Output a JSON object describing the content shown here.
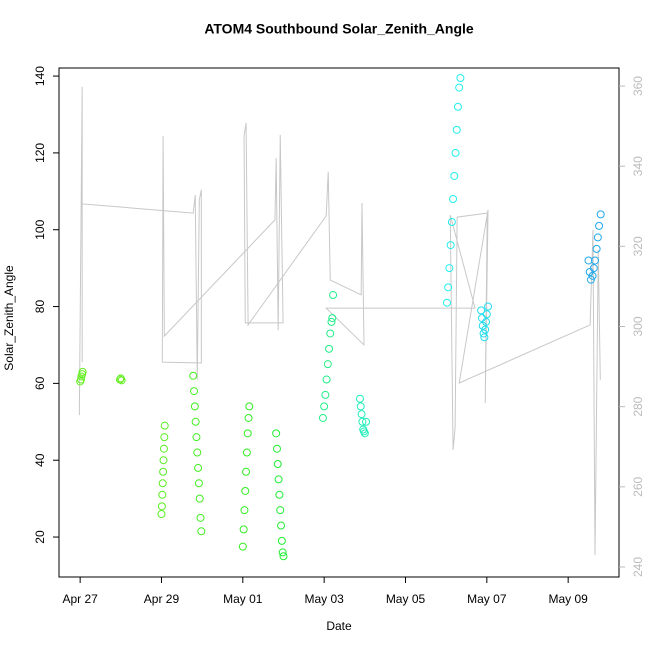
{
  "chart_data": {
    "type": "scatter",
    "title": "ATOM4 Southbound Solar_Zenith_Angle",
    "x_label": "Date",
    "y_label": "Solar_Zenith_Angle",
    "xlim": [
      -0.52,
      13.25
    ],
    "xticks": [
      {
        "value": 0,
        "label": "Apr 27"
      },
      {
        "value": 2,
        "label": "Apr 29"
      },
      {
        "value": 4,
        "label": "May 01"
      },
      {
        "value": 6,
        "label": "May 03"
      },
      {
        "value": 8,
        "label": "May 05"
      },
      {
        "value": 10,
        "label": "May 07"
      },
      {
        "value": 12,
        "label": "May 09"
      }
    ],
    "ylim": [
      9.6,
      142.1
    ],
    "yticks": [
      20,
      40,
      60,
      80,
      100,
      120,
      140
    ],
    "y2lim": [
      237.5,
      364.5
    ],
    "y2ticks": [
      240,
      260,
      280,
      300,
      320,
      340,
      360
    ],
    "y2_color": "#bbbbbb",
    "series": [
      {
        "type": "line",
        "axis": "y2",
        "color": "#c8c8c8",
        "x": [
          -0.02,
          0.05,
          0.05,
          0.05,
          2.78,
          2.83,
          2.88,
          2.93,
          2.98,
          2.98,
          2.02,
          2.04,
          2.07,
          4.79,
          4.82,
          4.87,
          4.92,
          4.99,
          4.06,
          4.03,
          4.08,
          4.13,
          6.05,
          6.1,
          6.15,
          6.91,
          6.93,
          6.98,
          6.05,
          9.71,
          9.1,
          9.17,
          9.22,
          9.27,
          10.01,
          9.96,
          10.03,
          9.32,
          12.54,
          12.61,
          12.66,
          12.74,
          12.79
        ],
        "values": [
          277.9,
          359.8,
          291.1,
          330.6,
          328.3,
          332.8,
          286.7,
          331.6,
          334.1,
          290.9,
          291.1,
          347.5,
          297.6,
          326.6,
          342.0,
          299.1,
          347.8,
          300.9,
          300.9,
          347.5,
          350.8,
          300.4,
          327.6,
          338.6,
          311.6,
          307.9,
          330.8,
          295.4,
          304.6,
          304.6,
          327.8,
          269.2,
          274.7,
          327.3,
          328.3,
          280.9,
          329.1,
          285.9,
          300.4,
          324.1,
          243.0,
          319.1,
          286.7
        ]
      },
      {
        "type": "scatter",
        "color": "#66ee22",
        "x": [
          0.0,
          0.02,
          0.03,
          0.05,
          0.06
        ],
        "values": [
          60.5,
          61,
          61.8,
          62.4,
          63
        ]
      },
      {
        "type": "scatter",
        "color": "#66ee22",
        "x": [
          0.98,
          1.0,
          1.02
        ],
        "values": [
          61,
          61.3,
          60.8
        ]
      },
      {
        "type": "scatter",
        "color": "#5cee22",
        "x": [
          2.0,
          2.01,
          2.02,
          2.03,
          2.04,
          2.05,
          2.06,
          2.07,
          2.08
        ],
        "values": [
          26,
          28,
          31,
          34,
          37,
          40,
          43,
          46,
          49
        ]
      },
      {
        "type": "scatter",
        "color": "#44ee22",
        "x": [
          2.78,
          2.8,
          2.82,
          2.84,
          2.86,
          2.88,
          2.9,
          2.92,
          2.94,
          2.96,
          2.98
        ],
        "values": [
          62,
          58,
          54,
          50,
          46,
          42,
          38,
          34,
          30,
          25,
          21.5
        ]
      },
      {
        "type": "scatter",
        "color": "#33ee22",
        "x": [
          4.0,
          4.02,
          4.04,
          4.06,
          4.08,
          4.1,
          4.12,
          4.14,
          4.16
        ],
        "values": [
          17.5,
          22,
          27,
          32,
          37,
          42,
          47,
          51,
          54
        ]
      },
      {
        "type": "scatter",
        "color": "#22ee33",
        "x": [
          4.82,
          4.84,
          4.86,
          4.88,
          4.9,
          4.92,
          4.94,
          4.96,
          4.98,
          5.0
        ],
        "values": [
          47,
          43,
          39,
          35,
          31,
          27,
          23,
          19,
          16,
          15
        ]
      },
      {
        "type": "scatter",
        "color": "#22ee88",
        "x": [
          5.97,
          6.0,
          6.03,
          6.06,
          6.09,
          6.12,
          6.15,
          6.18,
          6.2,
          6.22
        ],
        "values": [
          51,
          54,
          57,
          61,
          65,
          69,
          73,
          76,
          77,
          83
        ]
      },
      {
        "type": "scatter",
        "color": "#22eebb",
        "x": [
          6.88,
          6.9,
          6.92,
          6.94,
          6.96,
          6.98,
          7.0,
          7.03
        ],
        "values": [
          56,
          54,
          52,
          50,
          48,
          47.5,
          47,
          50
        ]
      },
      {
        "type": "scatter",
        "color": "#22eeee",
        "x": [
          9.02,
          9.05,
          9.08,
          9.11,
          9.14,
          9.17,
          9.2,
          9.23,
          9.26,
          9.29,
          9.32,
          9.35
        ],
        "values": [
          81,
          85,
          90,
          96,
          102,
          108,
          114,
          120,
          126,
          132,
          137,
          139.5
        ]
      },
      {
        "type": "scatter",
        "color": "#22ddee",
        "x": [
          9.86,
          9.88,
          9.9,
          9.92,
          9.94,
          9.96,
          9.98,
          10.0,
          10.03
        ],
        "values": [
          79,
          77,
          75,
          73,
          72,
          74,
          76,
          78,
          80
        ]
      },
      {
        "type": "scatter",
        "color": "#22aaee",
        "x": [
          12.5,
          12.53,
          12.56,
          12.6,
          12.63,
          12.66,
          12.7,
          12.73,
          12.76,
          12.8
        ],
        "values": [
          92,
          89,
          87,
          88,
          90,
          92,
          95,
          98,
          101,
          104
        ]
      }
    ]
  }
}
